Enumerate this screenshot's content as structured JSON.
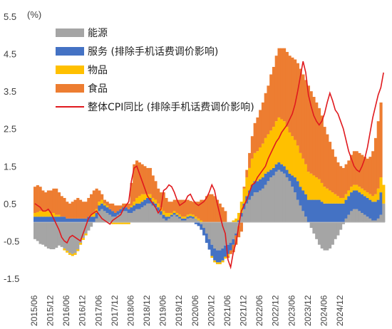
{
  "chart_data": {
    "type": "bar",
    "stacked": true,
    "unit_label": "(%)",
    "ylim": [
      -1.5,
      5.5
    ],
    "yticks": [
      -1.5,
      -0.5,
      0.5,
      1.5,
      2.5,
      3.5,
      4.5,
      5.5
    ],
    "ytick_labels": [
      "-1.5",
      "-0.5",
      "0.5",
      "1.5",
      "2.5",
      "3.5",
      "4.5",
      "5.5"
    ],
    "x_start": "2015/06",
    "xtick_labels": [
      "2015/06",
      "2015/12",
      "2016/06",
      "2016/12",
      "2017/06",
      "2017/12",
      "2018/06",
      "2018/12",
      "2019/06",
      "2019/12",
      "2020/06",
      "2020/12",
      "2021/06",
      "2021/12",
      "2022/06",
      "2022/12",
      "2023/06",
      "2023/12",
      "2024/06",
      "2024/12"
    ],
    "legend_position": "top-left",
    "grid": false,
    "series": [
      {
        "name": "能源",
        "kind": "bar",
        "color": "#a5a5a5",
        "values": [
          -0.45,
          -0.5,
          -0.58,
          -0.6,
          -0.65,
          -0.7,
          -0.72,
          -0.72,
          -0.68,
          -0.62,
          -0.66,
          -0.7,
          -0.76,
          -0.82,
          -0.85,
          -0.82,
          -0.72,
          -0.55,
          -0.42,
          -0.3,
          -0.22,
          -0.12,
          0.0,
          0.1,
          0.3,
          0.35,
          0.3,
          0.25,
          0.2,
          0.15,
          0.15,
          0.2,
          0.25,
          0.3,
          0.3,
          0.25,
          0.25,
          0.3,
          0.35,
          0.35,
          0.4,
          0.45,
          0.5,
          0.5,
          0.45,
          0.4,
          0.3,
          0.2,
          0.1,
          0.05,
          0.1,
          0.15,
          0.2,
          0.15,
          0.1,
          0.05,
          0.05,
          0.1,
          0.12,
          0.1,
          0.1,
          0.05,
          -0.05,
          -0.15,
          -0.3,
          -0.45,
          -0.6,
          -0.7,
          -0.75,
          -0.75,
          -0.7,
          -0.62,
          -0.6,
          -0.55,
          -0.45,
          -0.3,
          -0.1,
          0.15,
          0.35,
          0.5,
          0.6,
          0.7,
          0.8,
          0.8,
          0.85,
          0.9,
          1.0,
          1.1,
          1.2,
          1.25,
          1.35,
          1.4,
          1.35,
          1.3,
          1.2,
          1.1,
          0.95,
          0.8,
          0.6,
          0.45,
          0.3,
          0.15,
          0.0,
          -0.15,
          -0.3,
          -0.45,
          -0.6,
          -0.7,
          -0.75,
          -0.75,
          -0.7,
          -0.6,
          -0.45,
          -0.35,
          -0.2,
          -0.05,
          0.1,
          0.2,
          0.3,
          0.35,
          0.35,
          0.3,
          0.25,
          0.2,
          0.15,
          0.1,
          0.05,
          0.05,
          0.1,
          0.2,
          0.5
        ]
      },
      {
        "name": "服务 (排除手机话费调价影响)",
        "kind": "bar",
        "color": "#4472c4",
        "values": [
          0.15,
          0.15,
          0.15,
          0.15,
          0.15,
          0.15,
          0.15,
          0.15,
          0.15,
          0.15,
          0.15,
          0.15,
          0.1,
          0.1,
          0.1,
          0.1,
          0.1,
          0.1,
          0.1,
          0.1,
          0.15,
          0.15,
          0.15,
          0.15,
          0.15,
          0.15,
          0.15,
          0.15,
          0.15,
          0.15,
          0.1,
          0.1,
          0.1,
          0.1,
          0.1,
          0.1,
          0.15,
          0.15,
          0.15,
          0.15,
          0.15,
          0.15,
          0.15,
          0.15,
          0.1,
          0.1,
          0.1,
          0.1,
          0.1,
          0.1,
          0.05,
          0.05,
          0.05,
          0.05,
          0.05,
          0.05,
          0.05,
          0.05,
          0.05,
          0.05,
          -0.05,
          -0.1,
          -0.15,
          -0.2,
          -0.25,
          -0.28,
          -0.3,
          -0.32,
          -0.32,
          -0.32,
          -0.32,
          -0.3,
          -0.25,
          -0.2,
          -0.15,
          -0.05,
          0.05,
          0.1,
          0.15,
          0.2,
          0.25,
          0.3,
          0.3,
          0.3,
          0.3,
          0.3,
          0.3,
          0.25,
          0.2,
          0.2,
          0.2,
          0.2,
          0.2,
          0.2,
          0.2,
          0.2,
          0.3,
          0.4,
          0.5,
          0.5,
          0.55,
          0.6,
          0.6,
          0.6,
          0.6,
          0.6,
          0.6,
          0.55,
          0.5,
          0.5,
          0.5,
          0.5,
          0.5,
          0.5,
          0.5,
          0.5,
          0.5,
          0.5,
          0.5,
          0.5,
          0.5,
          0.5,
          0.5,
          0.5,
          0.5,
          0.5,
          0.5,
          0.5,
          0.5,
          0.6
        ]
      },
      {
        "name": "物品",
        "kind": "bar",
        "color": "#ffc000",
        "values": [
          0.1,
          0.12,
          0.15,
          0.15,
          0.15,
          0.15,
          0.1,
          0.1,
          0.05,
          0.05,
          0.0,
          -0.05,
          -0.05,
          -0.05,
          -0.05,
          -0.05,
          -0.05,
          -0.05,
          -0.05,
          -0.05,
          0.0,
          0.05,
          0.1,
          0.1,
          0.1,
          0.1,
          0.05,
          0.05,
          0.0,
          -0.05,
          -0.05,
          -0.05,
          -0.05,
          -0.05,
          -0.05,
          -0.05,
          0.05,
          0.1,
          0.15,
          0.2,
          0.2,
          0.15,
          0.1,
          0.1,
          0.1,
          0.1,
          0.1,
          0.1,
          0.1,
          0.1,
          0.1,
          0.05,
          0.05,
          0.05,
          0.05,
          0.05,
          0.05,
          0.05,
          0.05,
          0.05,
          0.05,
          0.05,
          0.05,
          0.0,
          0.0,
          0.0,
          -0.05,
          -0.05,
          -0.05,
          -0.05,
          -0.05,
          -0.05,
          -0.05,
          0.0,
          0.05,
          0.1,
          0.2,
          0.3,
          0.4,
          0.5,
          0.6,
          0.7,
          0.75,
          0.8,
          0.85,
          0.9,
          0.95,
          1.0,
          1.05,
          1.1,
          1.15,
          1.2,
          1.2,
          1.2,
          1.15,
          1.1,
          1.05,
          1.0,
          0.95,
          0.9,
          0.85,
          0.8,
          0.75,
          0.7,
          0.65,
          0.6,
          0.55,
          0.5,
          0.45,
          0.4,
          0.35,
          0.3,
          0.25,
          0.2,
          0.15,
          0.15,
          0.15,
          0.15,
          0.15,
          0.15,
          0.15,
          0.15,
          0.15,
          0.15,
          0.15,
          0.15,
          0.15,
          0.2,
          0.3,
          0.4,
          0.5,
          0.65
        ]
      },
      {
        "name": "食品",
        "kind": "bar",
        "color": "#ed7d31",
        "values": [
          0.7,
          0.72,
          0.65,
          0.55,
          0.5,
          0.55,
          0.6,
          0.65,
          0.7,
          0.6,
          0.55,
          0.5,
          0.45,
          0.4,
          0.45,
          0.5,
          0.55,
          0.5,
          0.45,
          0.45,
          0.5,
          0.55,
          0.6,
          0.55,
          0.3,
          0.15,
          0.1,
          0.1,
          0.15,
          0.2,
          0.2,
          0.15,
          0.1,
          0.1,
          0.1,
          0.15,
          0.6,
          1.0,
          1.0,
          0.9,
          0.8,
          0.75,
          0.7,
          0.7,
          0.6,
          0.5,
          0.4,
          0.4,
          0.5,
          0.4,
          0.3,
          0.3,
          0.3,
          0.35,
          0.4,
          0.45,
          0.45,
          0.4,
          0.35,
          0.35,
          0.4,
          0.45,
          0.55,
          0.6,
          0.7,
          0.75,
          0.75,
          0.7,
          0.6,
          0.5,
          0.4,
          0.3,
          -0.05,
          -0.1,
          -0.2,
          -0.25,
          -0.3,
          -0.25,
          0.05,
          0.2,
          0.4,
          0.6,
          0.8,
          0.9,
          1.0,
          1.1,
          1.2,
          1.3,
          1.5,
          1.6,
          1.75,
          1.85,
          1.9,
          1.95,
          2.0,
          2.05,
          2.1,
          2.15,
          2.2,
          2.25,
          2.25,
          2.25,
          2.3,
          2.2,
          2.1,
          2.0,
          1.9,
          1.8,
          1.6,
          1.45,
          1.3,
          1.15,
          1.0,
          0.9,
          0.85,
          0.8,
          0.8,
          0.8,
          0.85,
          0.9,
          0.9,
          0.9,
          0.9,
          0.9,
          0.9,
          1.0,
          1.2,
          1.5,
          1.8,
          2.0
        ]
      },
      {
        "name": "整体CPI同比 (排除手机话费调价影响)",
        "kind": "line",
        "color": "#e0191e",
        "values": [
          0.5,
          0.45,
          0.4,
          0.3,
          0.3,
          0.35,
          0.25,
          0.1,
          -0.05,
          -0.2,
          -0.4,
          -0.5,
          -0.55,
          -0.4,
          -0.35,
          -0.4,
          -0.45,
          -0.5,
          -0.3,
          -0.1,
          0.1,
          0.2,
          0.25,
          0.3,
          0.2,
          0.1,
          0.05,
          0.0,
          -0.05,
          0.05,
          0.1,
          0.15,
          0.2,
          0.35,
          0.45,
          0.55,
          1.1,
          1.45,
          1.5,
          1.3,
          1.1,
          0.9,
          0.7,
          0.6,
          0.5,
          0.4,
          0.25,
          0.35,
          0.85,
          0.9,
          1.0,
          0.95,
          0.8,
          0.6,
          0.45,
          0.5,
          0.55,
          0.7,
          0.75,
          0.6,
          0.5,
          0.45,
          0.5,
          0.55,
          0.65,
          0.8,
          1.0,
          0.85,
          0.5,
          0.2,
          -0.1,
          -0.3,
          -1.0,
          -1.2,
          -0.8,
          -0.55,
          -0.1,
          0.3,
          0.45,
          0.6,
          0.8,
          1.0,
          1.05,
          1.2,
          1.3,
          1.4,
          1.5,
          1.7,
          1.85,
          2.0,
          2.15,
          2.25,
          2.4,
          2.5,
          2.6,
          2.75,
          2.9,
          3.15,
          3.5,
          3.9,
          4.3,
          4.0,
          3.4,
          3.1,
          2.85,
          2.7,
          2.6,
          2.7,
          2.9,
          3.2,
          3.45,
          3.25,
          3.0,
          2.9,
          2.7,
          2.5,
          2.2,
          1.9,
          1.7,
          1.5,
          1.4,
          1.35,
          1.5,
          1.7,
          2.0,
          2.4,
          2.8,
          3.1,
          3.4,
          3.6,
          4.0
        ]
      }
    ]
  }
}
